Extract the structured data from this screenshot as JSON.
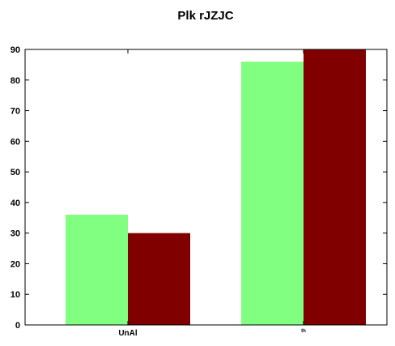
{
  "chart_data": {
    "type": "bar",
    "title": "Plk rJZJC",
    "xlabel": "",
    "ylabel": "",
    "categories": [
      "UnAl",
      "th"
    ],
    "series": [
      {
        "values": [
          36,
          86
        ],
        "color": "#80ff80"
      },
      {
        "values": [
          30,
          90
        ],
        "color": "#800000"
      }
    ],
    "ylim": [
      0,
      90
    ],
    "yticks": [
      0,
      10,
      20,
      30,
      40,
      50,
      60,
      70,
      80,
      90
    ],
    "grid": false,
    "legend": "none"
  }
}
